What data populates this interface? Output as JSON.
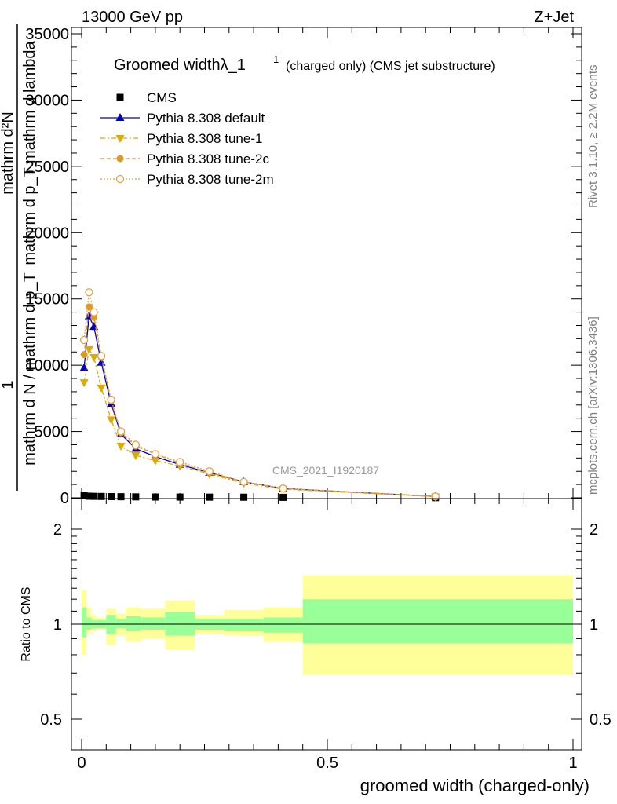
{
  "header": {
    "energy": "13000 GeV pp",
    "process": "Z+Jet"
  },
  "side_labels": {
    "rivet": "Rivet 3.1.10, ≥ 2.2M events",
    "mcplots": "mcplots.cern.ch [arXiv:1306.3436]"
  },
  "chart_data": [
    {
      "type": "line",
      "title": "Groomed widthλ_1",
      "title_sup": "1",
      "subtitle": "(charged only) (CMS jet substructure)",
      "watermark": "CMS_2021_I1920187",
      "ylabel_top": "mathrm d²N",
      "ylabel_top_sub": "mathrm d p_T mathrm d lambda",
      "ylabel_one": "1",
      "ylabel_bottom": "mathrm d N / mathrm d p_T",
      "xlim": [
        0,
        1
      ],
      "ylim": [
        0,
        35000
      ],
      "yticks": [
        "0",
        "5000",
        "10000",
        "15000",
        "20000",
        "25000",
        "30000",
        "35000"
      ],
      "legend_position": "top-left",
      "x": [
        0.005,
        0.015,
        0.025,
        0.04,
        0.06,
        0.08,
        0.11,
        0.15,
        0.2,
        0.26,
        0.33,
        0.41,
        0.72
      ],
      "series": [
        {
          "name": "CMS",
          "color": "#000000",
          "marker": "square",
          "values": [
            150,
            120,
            110,
            100,
            90,
            80,
            70,
            60,
            55,
            50,
            45,
            35,
            10
          ]
        },
        {
          "name": "Pythia 8.308 default",
          "color": "#0000cc",
          "marker": "triangle-up",
          "dash": "",
          "values": [
            9800,
            13700,
            12900,
            10200,
            7100,
            4800,
            3700,
            3100,
            2500,
            1900,
            1200,
            700,
            100
          ]
        },
        {
          "name": "Pythia 8.308 tune-1",
          "color": "#ddaa00",
          "marker": "triangle-down",
          "dash": "6,3,2,3",
          "values": [
            8700,
            11200,
            10600,
            8300,
            5900,
            3900,
            3200,
            2800,
            2400,
            1800,
            1100,
            650,
            90
          ]
        },
        {
          "name": "Pythia 8.308 tune-2c",
          "color": "#dd9922",
          "marker": "circle",
          "dash": "5,3",
          "values": [
            10800,
            14400,
            13600,
            10600,
            7300,
            4900,
            3900,
            3300,
            2600,
            1900,
            1200,
            700,
            100
          ]
        },
        {
          "name": "Pythia 8.308 tune-2m",
          "color": "#e8a040",
          "marker": "circle-open",
          "dash": "2,2",
          "values": [
            11900,
            15500,
            14000,
            10700,
            7400,
            5000,
            4000,
            3300,
            2700,
            2000,
            1200,
            700,
            100
          ]
        }
      ]
    },
    {
      "type": "area",
      "ylabel": "Ratio to CMS",
      "xlabel": "groomed width (charged-only)",
      "xlim": [
        0,
        1
      ],
      "ylim": [
        0.4,
        2.4
      ],
      "log_y": true,
      "xticks": [
        "0",
        "0.5",
        "1"
      ],
      "yticks": [
        "0.5",
        "1",
        "2"
      ],
      "bin_edges": [
        0,
        0.01,
        0.02,
        0.03,
        0.05,
        0.07,
        0.09,
        0.12,
        0.17,
        0.23,
        0.29,
        0.37,
        0.45,
        1.0
      ],
      "band_inner_color": "#99ff99",
      "band_outer_color": "#ffff99",
      "inner_lo": [
        0.91,
        0.96,
        0.97,
        0.97,
        0.93,
        0.97,
        0.95,
        0.96,
        0.92,
        0.96,
        0.95,
        0.94,
        0.87
      ],
      "inner_hi": [
        1.13,
        1.05,
        1.03,
        1.03,
        1.07,
        1.04,
        1.06,
        1.05,
        1.09,
        1.04,
        1.04,
        1.05,
        1.2
      ],
      "outer_lo": [
        0.8,
        0.93,
        0.95,
        0.96,
        0.86,
        0.92,
        0.88,
        0.9,
        0.83,
        0.93,
        0.92,
        0.88,
        0.69
      ],
      "outer_hi": [
        1.28,
        1.13,
        1.07,
        1.05,
        1.12,
        1.08,
        1.13,
        1.12,
        1.19,
        1.07,
        1.11,
        1.13,
        1.43
      ]
    }
  ]
}
